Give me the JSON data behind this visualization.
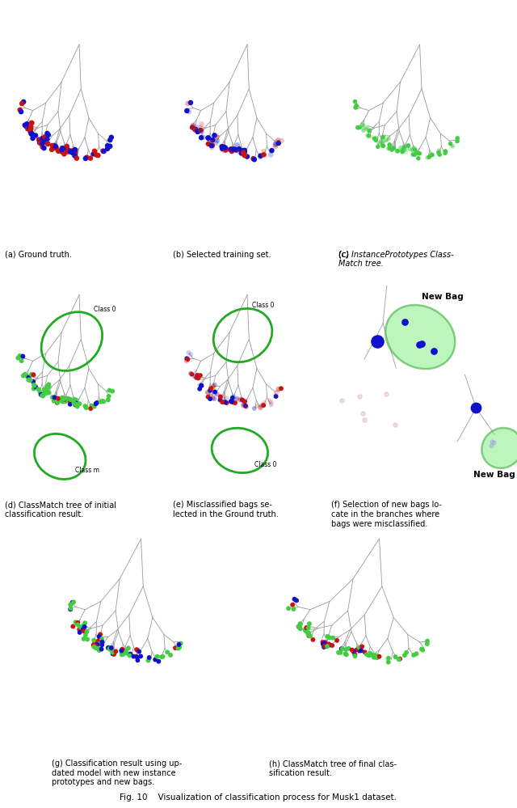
{
  "title": "Fig. 10    Visualization of classification process for Musk1 dataset.",
  "captions": {
    "a": "(a) Ground truth.",
    "b": "(b) Selected training set.",
    "c_line1": "(c) ",
    "c_italic": "InstancePrototypes",
    "c_line2": " Class-",
    "c_line3": "Match",
    "c_line4": " tree.",
    "d_line1": "(d) ",
    "d_italic": "ClassMatch",
    "d_line2": " tree of initial",
    "d_line3": "classification result.",
    "e": "(e) Misclassified bags se-\nlected in the Ground truth.",
    "f": "(f) Selection of new bags lo-\ncate in the branches where\nbags were misclassified.",
    "g_line1": "(g) Classification result using up-",
    "g_line2": "dated model with new instance",
    "g_line3": "prototypes and new bags.",
    "h_line1": "(h) ",
    "h_italic": "ClassMatch",
    "h_line2": " tree of final clas-",
    "h_line3": "sification result."
  },
  "background": "#ffffff"
}
